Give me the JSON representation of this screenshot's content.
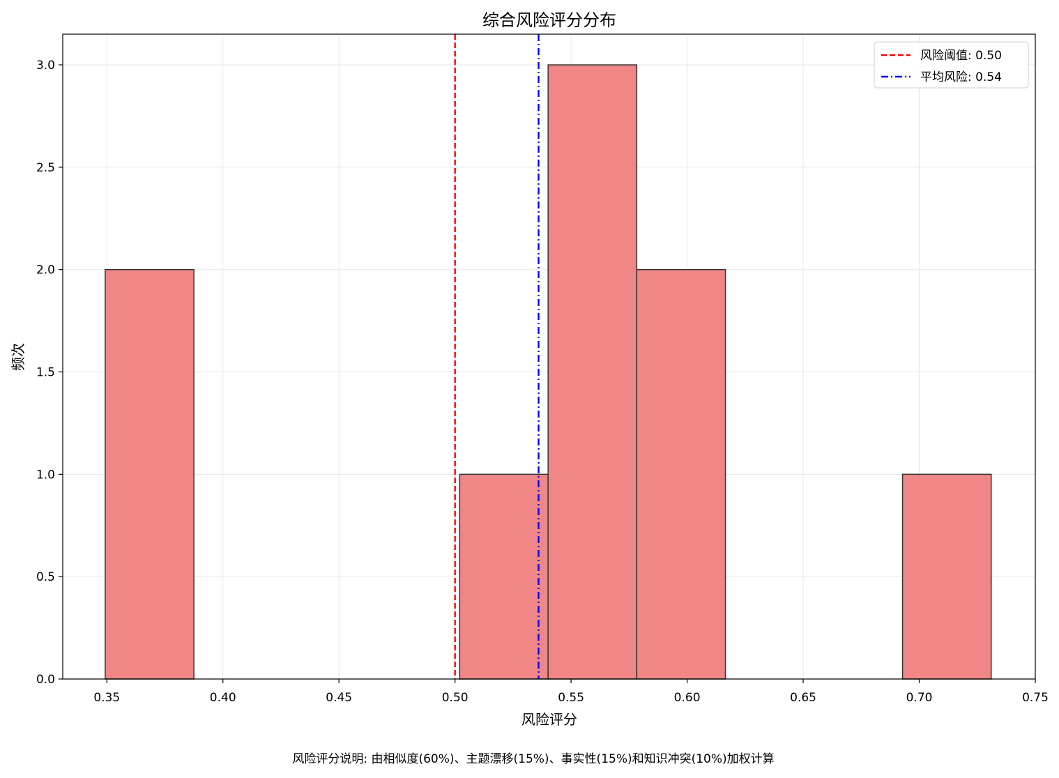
{
  "chart_data": {
    "type": "bar",
    "title": "综合风险评分分布",
    "xlabel": "风险评分",
    "ylabel": "频次",
    "footnote": "风险评分说明: 由相似度(60%)、主题漂移(15%)、事实性(15%)和知识冲突(10%)加权计算",
    "xlim": [
      0.331,
      0.75
    ],
    "ylim": [
      0,
      3.15
    ],
    "xticks": [
      0.35,
      0.4,
      0.45,
      0.5,
      0.55,
      0.6,
      0.65,
      0.7,
      0.75
    ],
    "xtick_labels": [
      "0.35",
      "0.40",
      "0.45",
      "0.50",
      "0.55",
      "0.60",
      "0.65",
      "0.70",
      "0.75"
    ],
    "yticks": [
      0.0,
      0.5,
      1.0,
      1.5,
      2.0,
      2.5,
      3.0
    ],
    "ytick_labels": [
      "0.0",
      "0.5",
      "1.0",
      "1.5",
      "2.0",
      "2.5",
      "3.0"
    ],
    "grid": true,
    "legend_position": "top-right",
    "bins": [
      {
        "x0": 0.3493,
        "x1": 0.3875,
        "count": 2
      },
      {
        "x0": 0.502,
        "x1": 0.5401,
        "count": 1
      },
      {
        "x0": 0.5401,
        "x1": 0.5783,
        "count": 3
      },
      {
        "x0": 0.5783,
        "x1": 0.6165,
        "count": 2
      },
      {
        "x0": 0.6928,
        "x1": 0.731,
        "count": 1
      }
    ],
    "bar_color": "#f08080",
    "bar_edge_color": "#333333",
    "reference_lines": [
      {
        "label": "风险阈值: 0.50",
        "x": 0.5,
        "color": "#ff0000",
        "style": "dashed"
      },
      {
        "label": "平均风险: 0.54",
        "x": 0.536,
        "color": "#0000ff",
        "style": "dashdot"
      }
    ]
  }
}
